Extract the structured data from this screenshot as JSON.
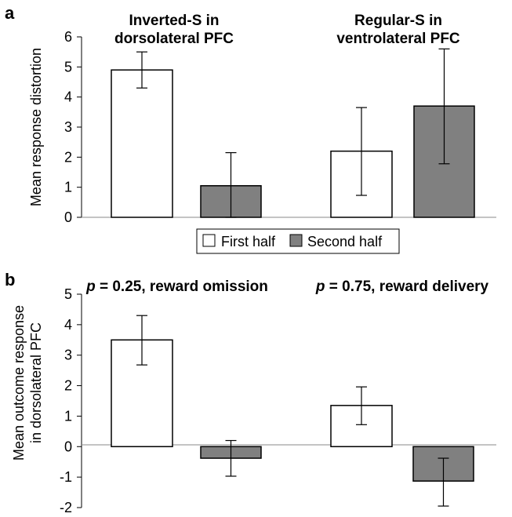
{
  "chart_data": [
    {
      "panel": "a",
      "type": "bar",
      "ylabel": "Mean response distortion",
      "ylim": [
        0,
        6
      ],
      "yticks": [
        0,
        1,
        2,
        3,
        4,
        5,
        6
      ],
      "groups": [
        {
          "title_lines": [
            "Inverted-S in",
            "dorsolateral PFC"
          ]
        },
        {
          "title_lines": [
            "Regular-S in",
            "ventrolateral PFC"
          ]
        }
      ],
      "series": [
        {
          "name": "First half",
          "color": "#ffffff",
          "values": [
            4.9,
            2.2
          ],
          "err_low": [
            4.3,
            0.73
          ],
          "err_high": [
            5.5,
            3.65
          ]
        },
        {
          "name": "Second half",
          "color": "#808080",
          "values": [
            1.05,
            3.7
          ],
          "err_low": [
            0.0,
            1.78
          ],
          "err_high": [
            2.15,
            5.6
          ]
        }
      ],
      "legend": {
        "placement": "bottom-center"
      }
    },
    {
      "panel": "b",
      "type": "bar",
      "ylabel_lines": [
        "Mean outcome response",
        "in dorsolateral PFC"
      ],
      "ylim": [
        -2,
        5
      ],
      "yticks": [
        -2,
        -1,
        0,
        1,
        2,
        3,
        4,
        5
      ],
      "groups": [
        {
          "title_p": "p",
          "title_rest": " = 0.25, reward omission"
        },
        {
          "title_p": "p",
          "title_rest": " = 0.75, reward delivery"
        }
      ],
      "series": [
        {
          "name": "First half",
          "color": "#ffffff",
          "values": [
            3.5,
            1.35
          ],
          "err_low": [
            2.68,
            0.72
          ],
          "err_high": [
            4.3,
            1.96
          ]
        },
        {
          "name": "Second half",
          "color": "#808080",
          "values": [
            -0.38,
            -1.13
          ],
          "err_low": [
            -0.97,
            -1.95
          ],
          "err_high": [
            0.2,
            -0.38
          ]
        }
      ]
    }
  ]
}
